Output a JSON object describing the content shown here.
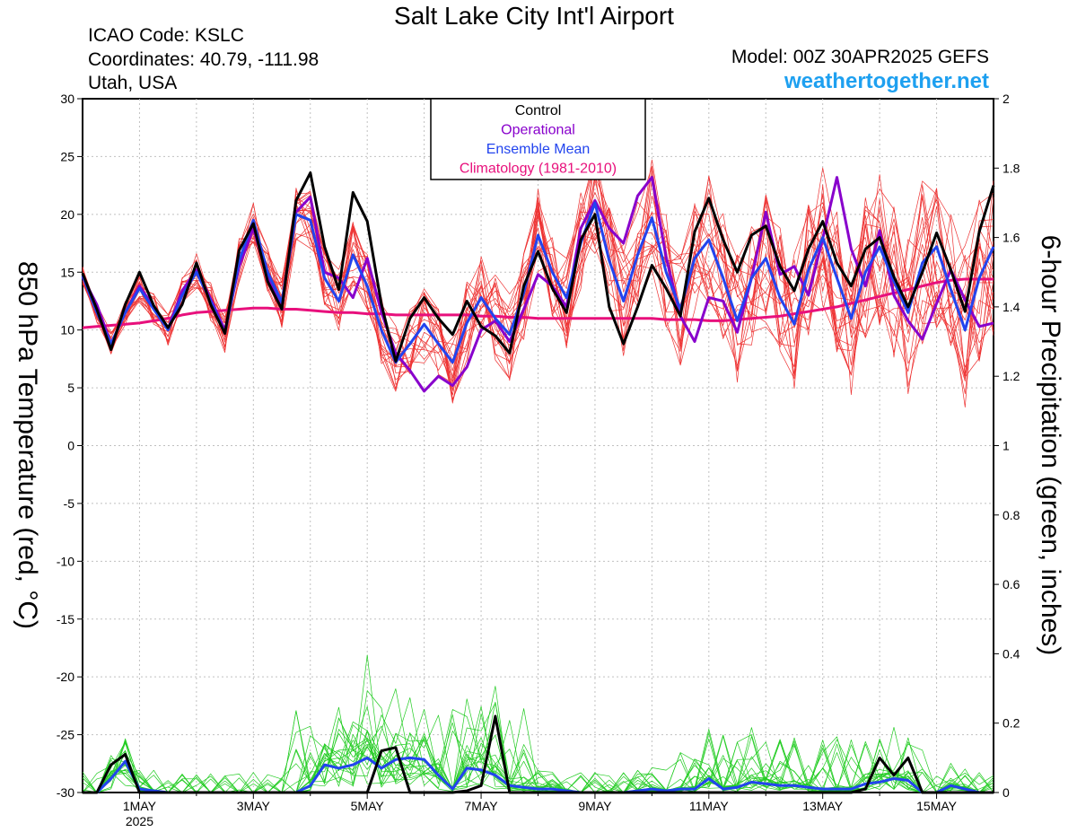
{
  "header": {
    "title": "Salt Lake City Int'l Airport",
    "icao": "ICAO Code: KSLC",
    "coords": "Coordinates: 40.79, -111.98",
    "region": "Utah, USA",
    "model": "Model: 00Z 30APR2025 GEFS",
    "site": "weathertogether.net"
  },
  "chart_data": {
    "type": "line",
    "y_left_label": "850 hPa Temperature (red, °C)",
    "y_right_label": "6-hour Precipitation (green, inches)",
    "y_left_range": [
      -30,
      30
    ],
    "y_left_ticks": [
      "30",
      "25",
      "20",
      "15",
      "10",
      "5",
      "0",
      "-5",
      "-10",
      "-15",
      "-20",
      "-25",
      "-30"
    ],
    "y_right_range": [
      0,
      2
    ],
    "y_right_ticks": [
      "2",
      "1.8",
      "1.6",
      "1.4",
      "1.2",
      "1",
      "0.8",
      "0.6",
      "0.4",
      "0.2",
      "0"
    ],
    "x_range_days": [
      0,
      16
    ],
    "x_tick_labels": [
      "1MAY",
      "3MAY",
      "5MAY",
      "7MAY",
      "9MAY",
      "11MAY",
      "13MAY",
      "15MAY"
    ],
    "x_tick_days": [
      1,
      3,
      5,
      7,
      9,
      11,
      13,
      15
    ],
    "x_sublabel": "2025",
    "legend": {
      "position": "top-center",
      "items": [
        {
          "label": "Control",
          "color": "#000000"
        },
        {
          "label": "Operational",
          "color": "#8800cc"
        },
        {
          "label": "Ensemble Mean",
          "color": "#2244ee"
        },
        {
          "label": "Climatology (1981-2010)",
          "color": "#e8107c"
        }
      ]
    },
    "colors": {
      "control": "#000000",
      "operational": "#8800cc",
      "ensemble_mean": "#2244ee",
      "climatology": "#e8107c",
      "member_temp": "#ee3333",
      "member_precip": "#22cc22",
      "grid": "#c0c0c0"
    },
    "series": {
      "control_temp": [
        14.9,
        11.8,
        8.3,
        12.2,
        15.0,
        12.1,
        10.2,
        12.2,
        15.8,
        12.2,
        9.7,
        16.9,
        19.2,
        14.2,
        11.8,
        21.2,
        23.6,
        17.2,
        13.5,
        21.9,
        19.4,
        12.2,
        7.3,
        11.0,
        12.8,
        11.0,
        9.6,
        12.5,
        10.3,
        9.5,
        8.0,
        13.8,
        16.8,
        13.6,
        11.5,
        17.8,
        20.0,
        12.0,
        8.8,
        12.0,
        15.6,
        13.6,
        11.2,
        18.5,
        21.4,
        17.8,
        15.0,
        18.2,
        19.0,
        15.5,
        13.4,
        17.0,
        19.4,
        15.8,
        13.8,
        17.0,
        18.0,
        14.6,
        12.0,
        15.0,
        18.4,
        15.2,
        11.6,
        18.5,
        22.5
      ],
      "operational_temp": [
        14.6,
        12.2,
        8.8,
        11.5,
        13.8,
        12.0,
        10.1,
        13.4,
        15.2,
        12.7,
        10.0,
        15.5,
        18.8,
        14.6,
        12.3,
        20.2,
        21.5,
        15.0,
        14.5,
        12.8,
        16.2,
        11.5,
        8.0,
        6.5,
        4.7,
        6.0,
        5.2,
        6.8,
        10.0,
        10.8,
        9.0,
        11.8,
        14.8,
        13.8,
        12.0,
        18.8,
        21.2,
        18.8,
        17.5,
        21.6,
        23.2,
        16.3,
        11.2,
        9.0,
        12.8,
        12.5,
        9.8,
        14.5,
        20.2,
        14.8,
        15.5,
        13.0,
        17.9,
        23.2,
        17.0,
        13.8,
        18.6,
        13.0,
        10.8,
        9.2,
        12.3,
        15.2,
        12.6,
        10.3,
        10.6
      ],
      "ensemble_mean_temp": [
        14.7,
        11.5,
        8.8,
        11.5,
        13.6,
        11.8,
        10.0,
        13.0,
        15.0,
        12.5,
        9.7,
        16.0,
        19.5,
        15.0,
        12.4,
        20.0,
        19.5,
        14.5,
        12.5,
        16.5,
        13.8,
        10.0,
        7.2,
        8.8,
        10.5,
        8.8,
        7.2,
        10.6,
        12.8,
        11.0,
        9.6,
        13.2,
        18.2,
        15.0,
        12.8,
        17.5,
        21.0,
        16.0,
        12.5,
        16.5,
        19.7,
        15.0,
        11.8,
        16.2,
        17.8,
        14.5,
        10.8,
        14.5,
        16.2,
        12.8,
        10.5,
        15.2,
        18.0,
        14.5,
        11.0,
        15.0,
        17.2,
        14.2,
        11.5,
        15.8,
        17.2,
        13.5,
        10.0,
        14.5,
        17.2
      ],
      "climatology_temp": [
        10.2,
        10.3,
        10.4,
        10.5,
        10.6,
        10.8,
        11.0,
        11.3,
        11.5,
        11.6,
        11.7,
        11.8,
        11.9,
        11.9,
        11.8,
        11.8,
        11.7,
        11.6,
        11.5,
        11.5,
        11.4,
        11.4,
        11.3,
        11.3,
        11.3,
        11.3,
        11.3,
        11.3,
        11.2,
        11.2,
        11.1,
        11.1,
        11.0,
        11.0,
        11.0,
        11.0,
        11.0,
        11.0,
        11.0,
        11.0,
        11.0,
        10.9,
        10.9,
        10.9,
        10.8,
        10.8,
        10.9,
        11.0,
        11.1,
        11.2,
        11.4,
        11.6,
        11.8,
        12.0,
        12.3,
        12.6,
        12.9,
        13.2,
        13.5,
        13.8,
        14.1,
        14.3,
        14.4,
        14.4,
        14.4
      ],
      "control_precip": [
        0,
        0,
        0.08,
        0.11,
        0,
        0,
        0,
        0,
        0,
        0,
        0,
        0,
        0,
        0,
        0,
        0,
        0,
        0,
        0,
        0,
        0,
        0.12,
        0.13,
        0,
        0,
        0,
        0,
        0.005,
        0.02,
        0.22,
        0,
        0,
        0,
        0,
        0,
        0,
        0,
        0,
        0,
        0,
        0,
        0,
        0,
        0,
        0,
        0,
        0,
        0,
        0,
        0,
        0,
        0,
        0,
        0,
        0,
        0.01,
        0.1,
        0.05,
        0.1,
        0,
        0,
        0,
        0,
        0,
        0
      ],
      "ensemble_mean_precip": [
        0,
        0,
        0.04,
        0.09,
        0.01,
        0.005,
        0,
        0,
        0,
        0,
        0,
        0,
        0,
        0,
        0,
        0,
        0.02,
        0.08,
        0.07,
        0.08,
        0.1,
        0.07,
        0.095,
        0.1,
        0.095,
        0.05,
        0.01,
        0.07,
        0.065,
        0.05,
        0.02,
        0.015,
        0.01,
        0.01,
        0.005,
        0,
        0,
        0,
        0,
        0.005,
        0.01,
        0.005,
        0.01,
        0.01,
        0.04,
        0.01,
        0.015,
        0.03,
        0.025,
        0.02,
        0.02,
        0.015,
        0.01,
        0.01,
        0.01,
        0.025,
        0.03,
        0.04,
        0.035,
        0,
        0,
        0.02,
        0.01,
        0,
        0
      ]
    }
  }
}
